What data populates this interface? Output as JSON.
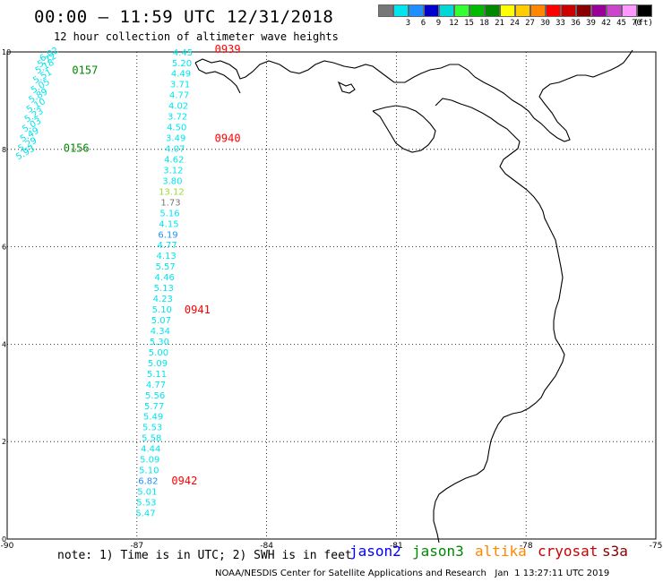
{
  "header": {
    "title": "00:00 — 11:59 UTC 12/31/2018",
    "subtitle": "12 hour collection of altimeter wave heights"
  },
  "legend": {
    "unit": "(ft)",
    "items": [
      {
        "label": "",
        "color": "#777777"
      },
      {
        "label": "3",
        "color": "#00e5ee"
      },
      {
        "label": "6",
        "color": "#1e90ff"
      },
      {
        "label": "9",
        "color": "#0000cd"
      },
      {
        "label": "12",
        "color": "#00d7d7"
      },
      {
        "label": "15",
        "color": "#33ff33"
      },
      {
        "label": "18",
        "color": "#00bb00"
      },
      {
        "label": "21",
        "color": "#008800"
      },
      {
        "label": "24",
        "color": "#ffff00"
      },
      {
        "label": "27",
        "color": "#ffcc00"
      },
      {
        "label": "30",
        "color": "#ff8800"
      },
      {
        "label": "33",
        "color": "#ff0000"
      },
      {
        "label": "36",
        "color": "#cc0000"
      },
      {
        "label": "39",
        "color": "#880000"
      },
      {
        "label": "42",
        "color": "#990099"
      },
      {
        "label": "45",
        "color": "#cc44cc"
      },
      {
        "label": "70",
        "color": "#ff99ff"
      },
      {
        "label": "",
        "color": "#000000"
      }
    ]
  },
  "map": {
    "lon_range": [
      -90,
      -75
    ],
    "lat_range": [
      0,
      10
    ],
    "x_tick_labels": [
      "-90",
      "-87",
      "-84",
      "-81",
      "-78",
      "-75"
    ],
    "y_tick_labels": [
      "0",
      "2",
      "4",
      "6",
      "8",
      "10"
    ],
    "track_points": [
      {
        "lon": -85.94,
        "lat": 9.93,
        "value": "4.45",
        "color": "#00e5ee"
      },
      {
        "lon": -85.96,
        "lat": 9.71,
        "value": "5.20",
        "color": "#00e5ee"
      },
      {
        "lon": -85.98,
        "lat": 9.49,
        "value": "4.49",
        "color": "#00e5ee"
      },
      {
        "lon": -86.0,
        "lat": 9.27,
        "value": "3.71",
        "color": "#00e5ee"
      },
      {
        "lon": -86.02,
        "lat": 9.05,
        "value": "4.77",
        "color": "#00e5ee"
      },
      {
        "lon": -86.04,
        "lat": 8.83,
        "value": "4.02",
        "color": "#00e5ee"
      },
      {
        "lon": -86.06,
        "lat": 8.61,
        "value": "3.72",
        "color": "#00e5ee"
      },
      {
        "lon": -86.08,
        "lat": 8.39,
        "value": "4.50",
        "color": "#00e5ee"
      },
      {
        "lon": -86.1,
        "lat": 8.17,
        "value": "3.49",
        "color": "#00e5ee"
      },
      {
        "lon": -86.12,
        "lat": 7.95,
        "value": "4.07",
        "color": "#00e5ee"
      },
      {
        "lon": -86.14,
        "lat": 7.73,
        "value": "4.62",
        "color": "#00e5ee"
      },
      {
        "lon": -86.16,
        "lat": 7.51,
        "value": "3.12",
        "color": "#00e5ee"
      },
      {
        "lon": -86.18,
        "lat": 7.29,
        "value": "3.80",
        "color": "#00e5ee"
      },
      {
        "lon": -86.2,
        "lat": 7.07,
        "value": "13.12",
        "color": "#99dd33"
      },
      {
        "lon": -86.22,
        "lat": 6.85,
        "value": "1.73",
        "color": "#777777"
      },
      {
        "lon": -86.24,
        "lat": 6.63,
        "value": "5.16",
        "color": "#00e5ee"
      },
      {
        "lon": -86.26,
        "lat": 6.41,
        "value": "4.15",
        "color": "#00e5ee"
      },
      {
        "lon": -86.28,
        "lat": 6.19,
        "value": "6.19",
        "color": "#1e90ff"
      },
      {
        "lon": -86.3,
        "lat": 5.97,
        "value": "4.77",
        "color": "#00e5ee"
      },
      {
        "lon": -86.32,
        "lat": 5.75,
        "value": "4.13",
        "color": "#00e5ee"
      },
      {
        "lon": -86.34,
        "lat": 5.53,
        "value": "5.57",
        "color": "#00e5ee"
      },
      {
        "lon": -86.36,
        "lat": 5.31,
        "value": "4.46",
        "color": "#00e5ee"
      },
      {
        "lon": -86.38,
        "lat": 5.09,
        "value": "5.13",
        "color": "#00e5ee"
      },
      {
        "lon": -86.4,
        "lat": 4.87,
        "value": "4.23",
        "color": "#00e5ee"
      },
      {
        "lon": -86.42,
        "lat": 4.65,
        "value": "5.10",
        "color": "#00e5ee"
      },
      {
        "lon": -86.44,
        "lat": 4.43,
        "value": "5.07",
        "color": "#00e5ee"
      },
      {
        "lon": -86.46,
        "lat": 4.21,
        "value": "4.34",
        "color": "#00e5ee"
      },
      {
        "lon": -86.48,
        "lat": 3.99,
        "value": "5.30",
        "color": "#00e5ee"
      },
      {
        "lon": -86.5,
        "lat": 3.77,
        "value": "5.00",
        "color": "#00e5ee"
      },
      {
        "lon": -86.52,
        "lat": 3.55,
        "value": "5.09",
        "color": "#00e5ee"
      },
      {
        "lon": -86.54,
        "lat": 3.33,
        "value": "5.11",
        "color": "#00e5ee"
      },
      {
        "lon": -86.56,
        "lat": 3.11,
        "value": "4.77",
        "color": "#00e5ee"
      },
      {
        "lon": -86.58,
        "lat": 2.89,
        "value": "5.56",
        "color": "#00e5ee"
      },
      {
        "lon": -86.6,
        "lat": 2.67,
        "value": "5.77",
        "color": "#00e5ee"
      },
      {
        "lon": -86.62,
        "lat": 2.45,
        "value": "5.49",
        "color": "#00e5ee"
      },
      {
        "lon": -86.64,
        "lat": 2.23,
        "value": "5.53",
        "color": "#00e5ee"
      },
      {
        "lon": -86.66,
        "lat": 2.01,
        "value": "5.58",
        "color": "#00e5ee"
      },
      {
        "lon": -86.68,
        "lat": 1.79,
        "value": "4.44",
        "color": "#00e5ee"
      },
      {
        "lon": -86.7,
        "lat": 1.57,
        "value": "5.09",
        "color": "#00e5ee"
      },
      {
        "lon": -86.72,
        "lat": 1.35,
        "value": "5.10",
        "color": "#00e5ee"
      },
      {
        "lon": -86.74,
        "lat": 1.13,
        "value": "6.82",
        "color": "#1e90ff"
      },
      {
        "lon": -86.76,
        "lat": 0.91,
        "value": "5.01",
        "color": "#00e5ee"
      },
      {
        "lon": -86.78,
        "lat": 0.69,
        "value": "5.53",
        "color": "#00e5ee"
      },
      {
        "lon": -86.8,
        "lat": 0.47,
        "value": "5.47",
        "color": "#00e5ee"
      }
    ],
    "left_track_points": [
      {
        "lon": -89.0,
        "lat": 9.9,
        "value": "6.02",
        "color": "#00e5ee"
      },
      {
        "lon": -89.05,
        "lat": 9.78,
        "value": "5.72",
        "color": "#00e5ee"
      },
      {
        "lon": -89.1,
        "lat": 9.65,
        "value": "5.18",
        "color": "#00e5ee"
      },
      {
        "lon": -89.15,
        "lat": 9.45,
        "value": "5.51",
        "color": "#00e5ee"
      },
      {
        "lon": -89.2,
        "lat": 9.25,
        "value": "5.05",
        "color": "#00e5ee"
      },
      {
        "lon": -89.25,
        "lat": 9.05,
        "value": "5.89",
        "color": "#00e5ee"
      },
      {
        "lon": -89.3,
        "lat": 8.85,
        "value": "5.10",
        "color": "#00e5ee"
      },
      {
        "lon": -89.35,
        "lat": 8.65,
        "value": "5.23",
        "color": "#00e5ee"
      },
      {
        "lon": -89.4,
        "lat": 8.45,
        "value": "5.03",
        "color": "#00e5ee"
      },
      {
        "lon": -89.45,
        "lat": 8.25,
        "value": "5.49",
        "color": "#00e5ee"
      },
      {
        "lon": -89.5,
        "lat": 8.05,
        "value": "5.29",
        "color": "#00e5ee"
      },
      {
        "lon": -89.55,
        "lat": 7.88,
        "value": "5.93",
        "color": "#00e5ee"
      }
    ],
    "time_labels": [
      {
        "lon": -85.2,
        "lat": 9.98,
        "text": "0939",
        "color": "#ff0000"
      },
      {
        "lon": -85.2,
        "lat": 8.15,
        "text": "0940",
        "color": "#ff0000"
      },
      {
        "lon": -85.9,
        "lat": 4.63,
        "text": "0941",
        "color": "#ff0000"
      },
      {
        "lon": -86.2,
        "lat": 1.12,
        "text": "0942",
        "color": "#ff0000"
      },
      {
        "lon": -88.5,
        "lat": 9.55,
        "text": "0157",
        "color": "#008800"
      },
      {
        "lon": -88.7,
        "lat": 7.95,
        "text": "0156",
        "color": "#008800"
      }
    ]
  },
  "notes": {
    "note_text": "note: 1) Time is in UTC; 2) SWH is in feet",
    "footer": "NOAA/NESDIS Center for Satellite Applications and Research   Jan  1 13:27:11 UTC 2019"
  },
  "satellites": [
    {
      "name": "jason2",
      "color": "#0000ff"
    },
    {
      "name": "jason3",
      "color": "#008800"
    },
    {
      "name": "altika",
      "color": "#ff8800"
    },
    {
      "name": "cryosat",
      "color": "#cc0000"
    },
    {
      "name": "s3a",
      "color": "#880000"
    }
  ]
}
